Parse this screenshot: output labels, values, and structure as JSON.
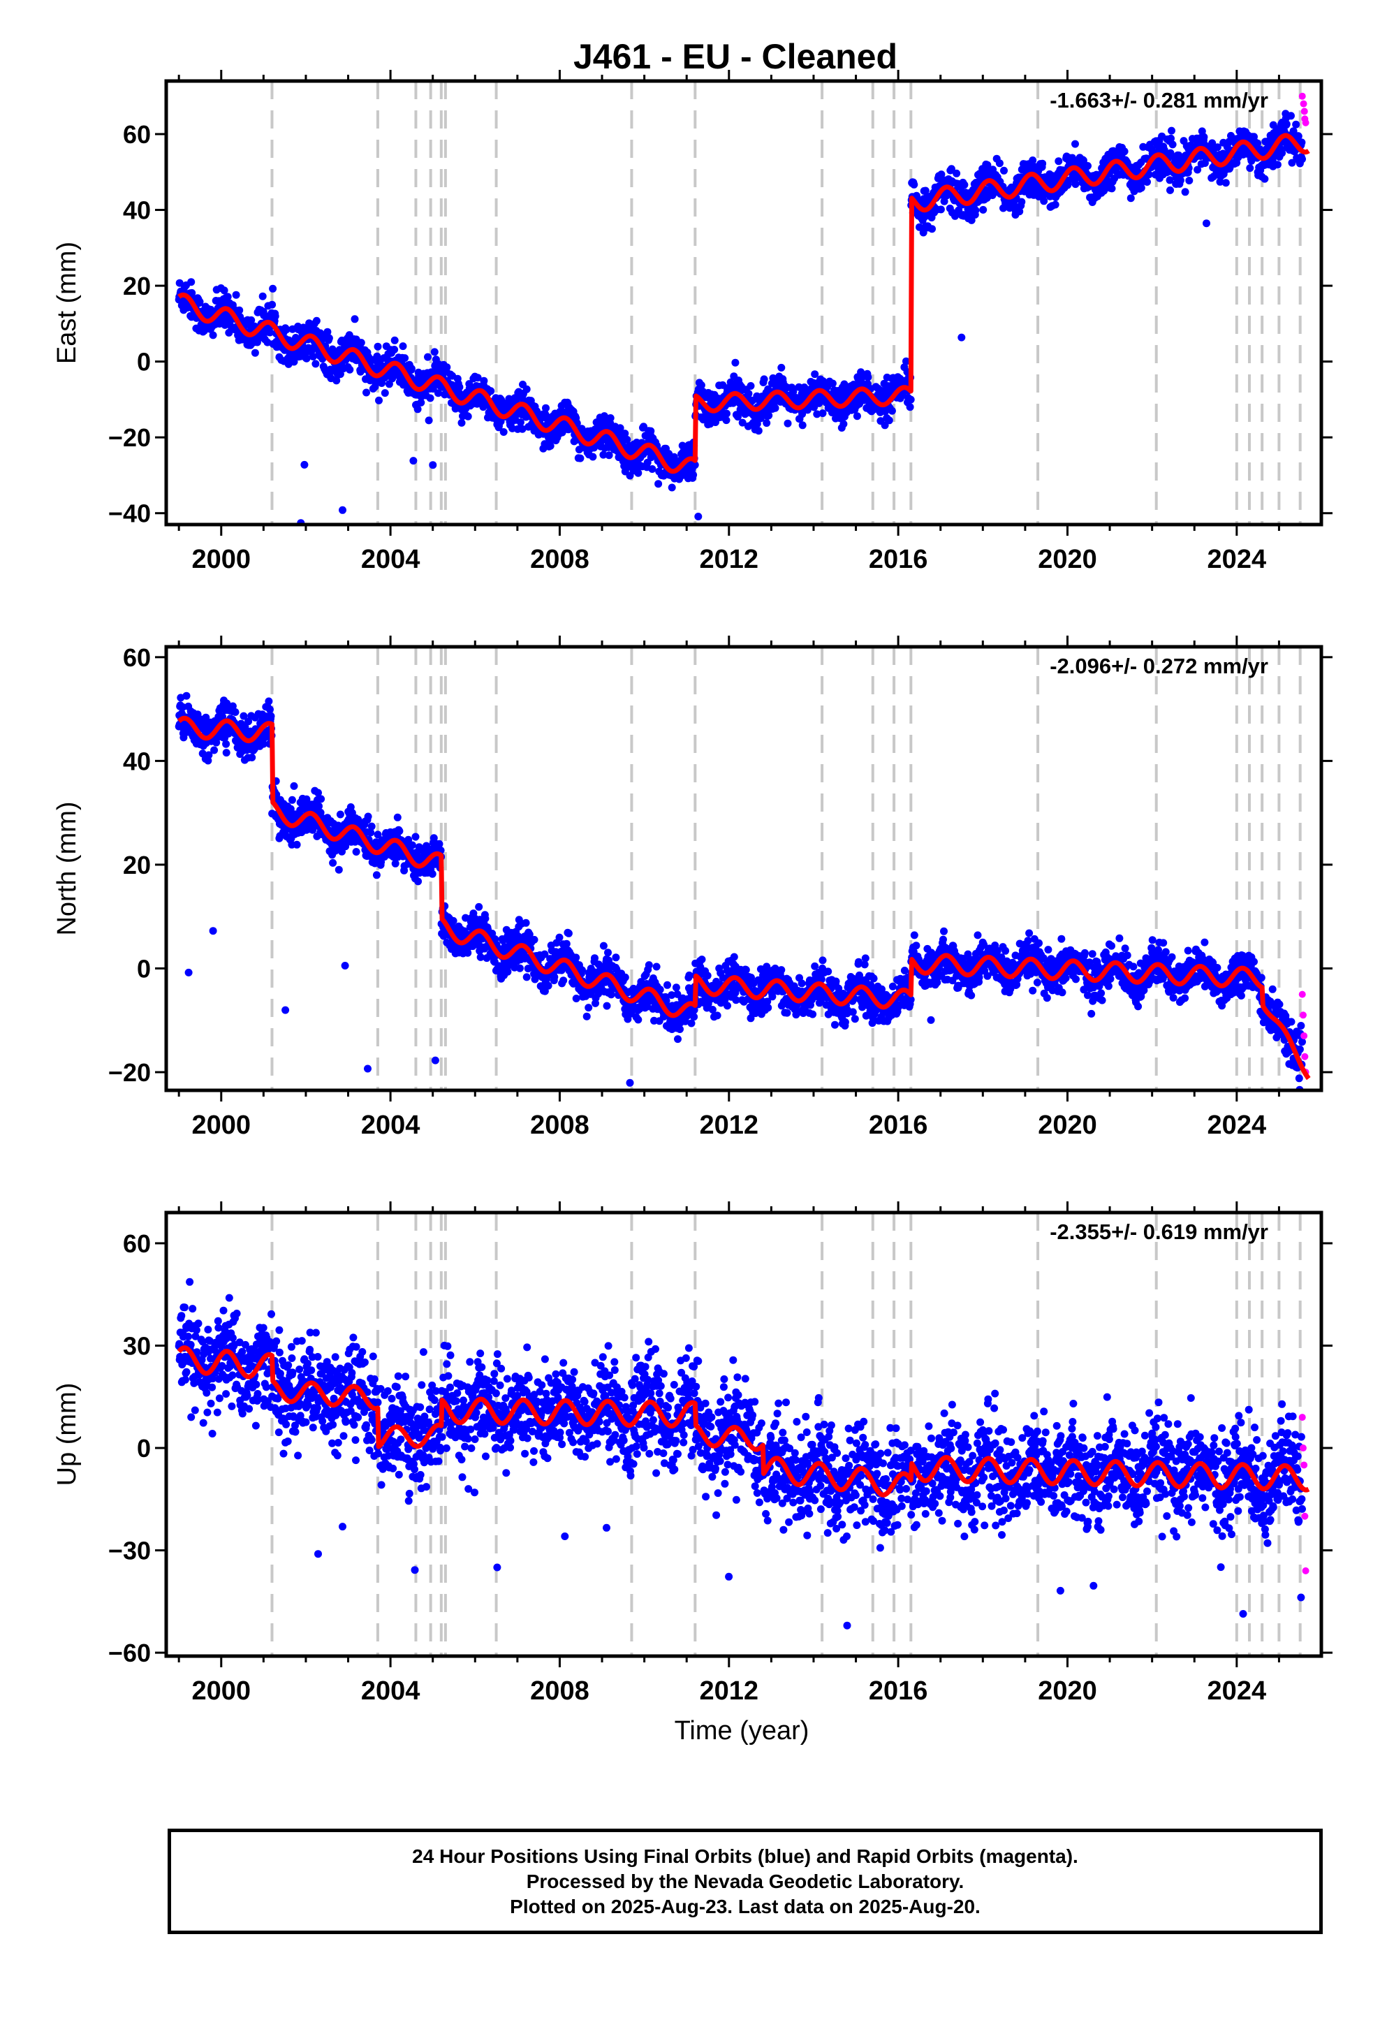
{
  "title": "J461  - EU - Cleaned",
  "colors": {
    "data": "#0000ff",
    "rapid": "#ff00ff",
    "model": "#ff0000",
    "events": "#c8c8c8",
    "frame": "#000000"
  },
  "xlabel": "Time (year)",
  "x_ticks": [
    "2000",
    "2004",
    "2008",
    "2012",
    "2016",
    "2020",
    "2024"
  ],
  "footer": {
    "line1": "24 Hour Positions Using Final Orbits (blue) and Rapid Orbits (magenta).",
    "line2": "Processed by the Nevada Geodetic Laboratory.",
    "line3": "Plotted on 2025-Aug-23. Last data on 2025-Aug-20."
  },
  "chart_data": [
    {
      "type": "scatter",
      "component": "east",
      "ylabel": "East (mm)",
      "rate": "-1.663+/- 0.281 mm/yr",
      "xlim": [
        1998.7,
        2026.0
      ],
      "ylim": [
        -43,
        74
      ],
      "y_ticks": [
        60,
        40,
        20,
        0,
        -20,
        -40
      ],
      "events": [
        2001.2,
        2003.7,
        2004.6,
        2004.95,
        2005.2,
        2005.3,
        2006.5,
        2009.7,
        2011.2,
        2014.2,
        2015.4,
        2015.9,
        2016.3,
        2019.3,
        2022.1,
        2024.0,
        2024.3,
        2024.6,
        2025.0,
        2025.5
      ],
      "model_segments": [
        {
          "x0": 1999.0,
          "x1": 2011.2,
          "y0": 15.5,
          "slope": -3.6,
          "amp": 2.5
        },
        {
          "x0": 2011.2,
          "x1": 2016.3,
          "y0": -11.0,
          "slope": 0.4,
          "amp": 2.2
        },
        {
          "x0": 2016.3,
          "x1": 2025.7,
          "y0": 42.0,
          "slope": 1.7,
          "amp": 2.6
        }
      ],
      "noise_sd": 2.5,
      "rapid_points": [
        {
          "x": 2025.55,
          "y": 70
        },
        {
          "x": 2025.58,
          "y": 68
        },
        {
          "x": 2025.6,
          "y": 66
        },
        {
          "x": 2025.61,
          "y": 64
        },
        {
          "x": 2025.63,
          "y": 63
        }
      ]
    },
    {
      "type": "scatter",
      "component": "north",
      "ylabel": "North (mm)",
      "rate": "-2.096+/- 0.272 mm/yr",
      "xlim": [
        1998.7,
        2026.0
      ],
      "ylim": [
        -23.5,
        62
      ],
      "y_ticks": [
        60,
        40,
        20,
        0,
        -20
      ],
      "events": [
        2001.2,
        2003.7,
        2004.6,
        2004.95,
        2005.2,
        2005.3,
        2006.5,
        2009.7,
        2011.2,
        2014.2,
        2015.4,
        2015.9,
        2016.3,
        2019.3,
        2022.1,
        2024.0,
        2024.3,
        2024.6,
        2025.0,
        2025.5
      ],
      "model_segments": [
        {
          "x0": 1999.0,
          "x1": 2001.2,
          "y0": 46.5,
          "slope": -0.5,
          "amp": 1.8
        },
        {
          "x0": 2001.2,
          "x1": 2005.2,
          "y0": 30.5,
          "slope": -2.6,
          "amp": 1.8
        },
        {
          "x0": 2005.2,
          "x1": 2011.2,
          "y0": 8.0,
          "slope": -2.8,
          "amp": 1.8
        },
        {
          "x0": 2011.2,
          "x1": 2016.3,
          "y0": -3.0,
          "slope": -0.6,
          "amp": 1.8
        },
        {
          "x0": 2016.3,
          "x1": 2024.6,
          "y0": 1.0,
          "slope": -0.35,
          "amp": 1.8
        },
        {
          "x0": 2024.6,
          "x1": 2025.7,
          "y0": -6.0,
          "slope": -13.0,
          "amp": 1.0
        }
      ],
      "noise_sd": 2.0,
      "rapid_points": [
        {
          "x": 2025.55,
          "y": -5
        },
        {
          "x": 2025.57,
          "y": -9
        },
        {
          "x": 2025.59,
          "y": -13
        },
        {
          "x": 2025.61,
          "y": -17
        },
        {
          "x": 2025.63,
          "y": -20
        }
      ]
    },
    {
      "type": "scatter",
      "component": "up",
      "ylabel": "Up (mm)",
      "rate": "-2.355+/- 0.619 mm/yr",
      "xlim": [
        1998.7,
        2026.0
      ],
      "ylim": [
        -61,
        69
      ],
      "y_ticks": [
        60,
        30,
        0,
        -30,
        -60
      ],
      "events": [
        2001.2,
        2003.7,
        2004.6,
        2004.95,
        2005.2,
        2005.3,
        2006.5,
        2009.7,
        2011.2,
        2014.2,
        2015.4,
        2015.9,
        2016.3,
        2019.3,
        2022.1,
        2024.0,
        2024.3,
        2024.6,
        2025.0,
        2025.5
      ],
      "model_segments": [
        {
          "x0": 1999.0,
          "x1": 2001.2,
          "y0": 26.0,
          "slope": -1.0,
          "amp": 3.5
        },
        {
          "x0": 2001.2,
          "x1": 2003.7,
          "y0": 17.0,
          "slope": -1.0,
          "amp": 3.0
        },
        {
          "x0": 2003.7,
          "x1": 2005.2,
          "y0": 3.0,
          "slope": 0.5,
          "amp": 3.0
        },
        {
          "x0": 2005.2,
          "x1": 2011.2,
          "y0": 11.0,
          "slope": -0.2,
          "amp": 3.5
        },
        {
          "x0": 2011.2,
          "x1": 2012.8,
          "y0": 4.0,
          "slope": -1.0,
          "amp": 3.0
        },
        {
          "x0": 2012.8,
          "x1": 2016.3,
          "y0": -6.0,
          "slope": -1.5,
          "amp": 3.5
        },
        {
          "x0": 2016.3,
          "x1": 2025.7,
          "y0": -6.0,
          "slope": -0.3,
          "amp": 3.5
        }
      ],
      "noise_sd": 7.0,
      "rapid_points": [
        {
          "x": 2025.55,
          "y": 9
        },
        {
          "x": 2025.57,
          "y": 0
        },
        {
          "x": 2025.59,
          "y": -5
        },
        {
          "x": 2025.61,
          "y": -20
        },
        {
          "x": 2025.63,
          "y": -36
        }
      ]
    }
  ]
}
